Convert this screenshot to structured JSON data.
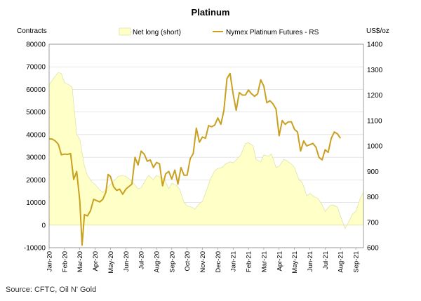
{
  "chart_data": {
    "type": "area+line",
    "title": "Platinum",
    "left_axis_label": "Contracts",
    "right_axis_label": "US$/oz",
    "legend": [
      "Net long (short)",
      "Nymex Platinum Futures - RS"
    ],
    "legend_placement": "top",
    "source": "Source: CFTC, Oil N' Gold",
    "colors": {
      "area_fill": "#ffffc8",
      "area_edge": "#d8d8a0",
      "line": "#c9a020",
      "grid": "#cccccc"
    },
    "y_left": {
      "min": -10000,
      "max": 80000,
      "step": 10000,
      "ticks": [
        "-10000",
        "0",
        "10000",
        "20000",
        "30000",
        "40000",
        "50000",
        "60000",
        "70000",
        "80000"
      ]
    },
    "y_right": {
      "min": 600,
      "max": 1400,
      "step": 100,
      "ticks": [
        "600",
        "700",
        "800",
        "900",
        "1000",
        "1100",
        "1200",
        "1300",
        "1400"
      ]
    },
    "x_labels": [
      "Jan-20",
      "Feb-20",
      "Mar-20",
      "Apr-20",
      "May-20",
      "Jun-20",
      "Jul-20",
      "Aug-20",
      "Sep-20",
      "Oct-20",
      "Nov-20",
      "Dec-20",
      "Jan-21",
      "Feb-21",
      "Mar-21",
      "Apr-21",
      "May-21",
      "Jun-21",
      "Jul-21",
      "Aug-21",
      "Sep-21"
    ],
    "x_range": [
      0,
      20.5
    ],
    "net_long": [
      [
        0,
        62000
      ],
      [
        0.3,
        65000
      ],
      [
        0.6,
        67500
      ],
      [
        0.8,
        67000
      ],
      [
        1.0,
        63000
      ],
      [
        1.3,
        62000
      ],
      [
        1.5,
        61000
      ],
      [
        1.8,
        40000
      ],
      [
        2.0,
        38000
      ],
      [
        2.3,
        26000
      ],
      [
        2.5,
        22000
      ],
      [
        2.8,
        19000
      ],
      [
        3.0,
        18000
      ],
      [
        3.3,
        15500
      ],
      [
        3.5,
        14500
      ],
      [
        3.8,
        16500
      ],
      [
        4.0,
        18000
      ],
      [
        4.3,
        20000
      ],
      [
        4.5,
        21500
      ],
      [
        4.8,
        22000
      ],
      [
        5.0,
        21500
      ],
      [
        5.3,
        20000
      ],
      [
        5.5,
        18500
      ],
      [
        5.8,
        16000
      ],
      [
        6.0,
        16500
      ],
      [
        6.3,
        20000
      ],
      [
        6.5,
        22000
      ],
      [
        6.8,
        20000
      ],
      [
        7.0,
        22000
      ],
      [
        7.3,
        21000
      ],
      [
        7.5,
        20500
      ],
      [
        7.8,
        16000
      ],
      [
        8.0,
        18500
      ],
      [
        8.3,
        17500
      ],
      [
        8.5,
        16000
      ],
      [
        8.8,
        10000
      ],
      [
        9.0,
        8500
      ],
      [
        9.3,
        8000
      ],
      [
        9.5,
        7000
      ],
      [
        9.8,
        9500
      ],
      [
        10.0,
        10500
      ],
      [
        10.3,
        16000
      ],
      [
        10.5,
        20000
      ],
      [
        10.8,
        24000
      ],
      [
        11.0,
        25000
      ],
      [
        11.3,
        25500
      ],
      [
        11.5,
        27000
      ],
      [
        11.8,
        28000
      ],
      [
        12.0,
        27500
      ],
      [
        12.3,
        29500
      ],
      [
        12.5,
        31000
      ],
      [
        12.8,
        36000
      ],
      [
        13.0,
        36500
      ],
      [
        13.3,
        35000
      ],
      [
        13.5,
        29000
      ],
      [
        13.8,
        28000
      ],
      [
        14.0,
        31000
      ],
      [
        14.3,
        30500
      ],
      [
        14.5,
        31500
      ],
      [
        14.8,
        25500
      ],
      [
        15.0,
        26000
      ],
      [
        15.3,
        29000
      ],
      [
        15.5,
        28500
      ],
      [
        15.8,
        27000
      ],
      [
        16.0,
        25500
      ],
      [
        16.3,
        20000
      ],
      [
        16.5,
        19000
      ],
      [
        16.8,
        13000
      ],
      [
        17.0,
        14000
      ],
      [
        17.3,
        12500
      ],
      [
        17.5,
        12000
      ],
      [
        17.8,
        9000
      ],
      [
        18.0,
        6000
      ],
      [
        18.3,
        8500
      ],
      [
        18.5,
        9000
      ],
      [
        18.8,
        8000
      ],
      [
        19.0,
        4000
      ],
      [
        19.3,
        -1500
      ],
      [
        19.5,
        1000
      ],
      [
        19.8,
        5000
      ],
      [
        20.0,
        6000
      ],
      [
        20.3,
        12000
      ],
      [
        20.5,
        14500
      ]
    ],
    "platinum_price": [
      [
        0,
        1028
      ],
      [
        0.2,
        1027
      ],
      [
        0.4,
        1020
      ],
      [
        0.6,
        1007
      ],
      [
        0.8,
        965
      ],
      [
        1.0,
        968
      ],
      [
        1.2,
        967
      ],
      [
        1.4,
        970
      ],
      [
        1.6,
        868
      ],
      [
        1.8,
        900
      ],
      [
        2.0,
        785
      ],
      [
        2.15,
        610
      ],
      [
        2.3,
        730
      ],
      [
        2.5,
        725
      ],
      [
        2.7,
        745
      ],
      [
        2.9,
        790
      ],
      [
        3.1,
        785
      ],
      [
        3.3,
        780
      ],
      [
        3.5,
        790
      ],
      [
        3.7,
        818
      ],
      [
        3.85,
        888
      ],
      [
        4.0,
        880
      ],
      [
        4.2,
        840
      ],
      [
        4.4,
        825
      ],
      [
        4.6,
        830
      ],
      [
        4.8,
        810
      ],
      [
        5.0,
        830
      ],
      [
        5.2,
        840
      ],
      [
        5.4,
        850
      ],
      [
        5.6,
        955
      ],
      [
        5.8,
        925
      ],
      [
        6.0,
        980
      ],
      [
        6.2,
        968
      ],
      [
        6.4,
        940
      ],
      [
        6.6,
        945
      ],
      [
        6.8,
        915
      ],
      [
        7.0,
        935
      ],
      [
        7.2,
        930
      ],
      [
        7.4,
        843
      ],
      [
        7.6,
        890
      ],
      [
        7.8,
        900
      ],
      [
        8.0,
        870
      ],
      [
        8.2,
        905
      ],
      [
        8.4,
        850
      ],
      [
        8.6,
        915
      ],
      [
        8.8,
        885
      ],
      [
        9.0,
        885
      ],
      [
        9.2,
        950
      ],
      [
        9.4,
        970
      ],
      [
        9.6,
        1070
      ],
      [
        9.8,
        1015
      ],
      [
        10.0,
        1035
      ],
      [
        10.2,
        1030
      ],
      [
        10.4,
        1080
      ],
      [
        10.6,
        1075
      ],
      [
        10.8,
        1082
      ],
      [
        11.0,
        1110
      ],
      [
        11.2,
        1085
      ],
      [
        11.4,
        1140
      ],
      [
        11.6,
        1265
      ],
      [
        11.8,
        1285
      ],
      [
        12.0,
        1205
      ],
      [
        12.2,
        1140
      ],
      [
        12.4,
        1210
      ],
      [
        12.6,
        1200
      ],
      [
        12.8,
        1200
      ],
      [
        13.0,
        1220
      ],
      [
        13.2,
        1205
      ],
      [
        13.4,
        1195
      ],
      [
        13.6,
        1205
      ],
      [
        13.8,
        1260
      ],
      [
        14.0,
        1235
      ],
      [
        14.2,
        1170
      ],
      [
        14.4,
        1178
      ],
      [
        14.6,
        1165
      ],
      [
        14.8,
        1145
      ],
      [
        15.0,
        1040
      ],
      [
        15.2,
        1100
      ],
      [
        15.4,
        1085
      ],
      [
        15.6,
        1095
      ],
      [
        15.8,
        1095
      ],
      [
        16.0,
        1065
      ],
      [
        16.2,
        1055
      ],
      [
        16.4,
        980
      ],
      [
        16.6,
        1020
      ],
      [
        16.8,
        1000
      ],
      [
        17.0,
        1005
      ],
      [
        17.2,
        1010
      ],
      [
        17.4,
        995
      ],
      [
        17.6,
        955
      ],
      [
        17.8,
        945
      ],
      [
        18.0,
        985
      ],
      [
        18.2,
        975
      ],
      [
        18.4,
        1030
      ],
      [
        18.6,
        1055
      ],
      [
        18.8,
        1048
      ],
      [
        19.0,
        1030
      ]
    ]
  }
}
